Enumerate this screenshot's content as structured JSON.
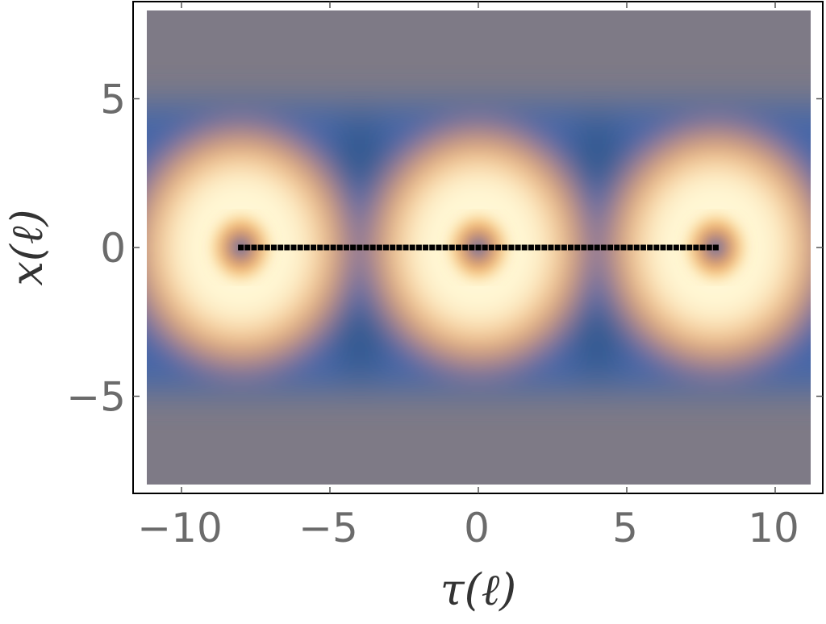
{
  "chart_data": {
    "type": "heatmap",
    "title": "",
    "xlabel": "τ(ℓ)",
    "ylabel": "x(ℓ)",
    "xlim": [
      -11.2,
      11.2
    ],
    "ylim": [
      -8,
      8
    ],
    "xticks": [
      -10,
      -5,
      0,
      5,
      10
    ],
    "xtick_labels": [
      "−10",
      "−5",
      "0",
      "5",
      "10"
    ],
    "yticks": [
      -5,
      0,
      5
    ],
    "ytick_labels": [
      "−5",
      "0",
      "5"
    ],
    "colormap": [
      "#7e7a86",
      "#4466a8",
      "#2a5584",
      "#f2a64a",
      "#fff7d4"
    ],
    "rings": [
      {
        "center_tau": -8,
        "center_x": 0
      },
      {
        "center_tau": 0,
        "center_x": 0
      },
      {
        "center_tau": 8,
        "center_x": 0
      }
    ],
    "dotted_line": {
      "tau_start": -8,
      "tau_end": 8,
      "x": 0,
      "color": "#000000"
    },
    "grid": false,
    "legend": "none"
  }
}
